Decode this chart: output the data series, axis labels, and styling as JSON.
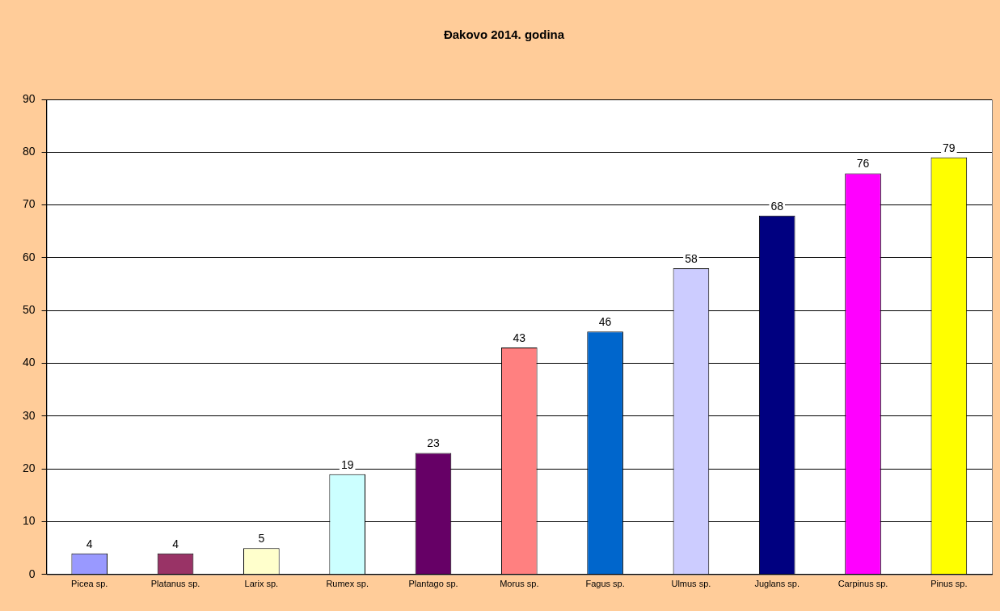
{
  "chart_data": {
    "type": "bar",
    "title": "Đakovo 2014. godina",
    "categories": [
      "Picea sp.",
      "Platanus sp.",
      "Larix sp.",
      "Rumex sp.",
      "Plantago sp.",
      "Morus sp.",
      "Fagus sp.",
      "Ulmus sp.",
      "Juglans sp.",
      "Carpinus sp.",
      "Pinus sp."
    ],
    "values": [
      4,
      4,
      5,
      19,
      23,
      43,
      46,
      58,
      68,
      76,
      79
    ],
    "colors": [
      "#9999ff",
      "#993366",
      "#ffffcc",
      "#ccffff",
      "#660066",
      "#ff8080",
      "#0066cc",
      "#ccccff",
      "#000080",
      "#ff00ff",
      "#ffff00"
    ],
    "ylim": [
      0,
      90
    ],
    "yticks": [
      0,
      10,
      20,
      30,
      40,
      50,
      60,
      70,
      80,
      90
    ],
    "grid": "y",
    "legend": false,
    "data_labels": true
  }
}
